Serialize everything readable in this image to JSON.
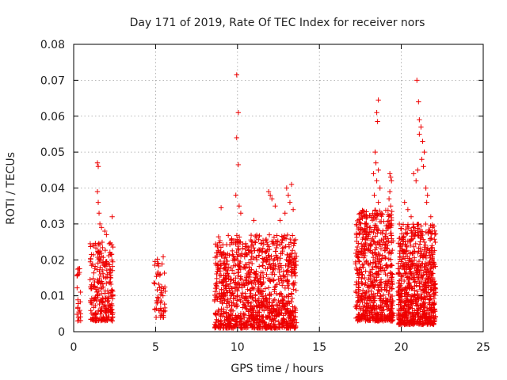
{
  "chart_data": {
    "type": "scatter",
    "title": "Day 171 of 2019, Rate Of TEC Index for receiver nors",
    "xlabel": "GPS time / hours",
    "ylabel": "ROTI / TECUs",
    "xlim": [
      0,
      25
    ],
    "ylim": [
      0,
      0.08
    ],
    "xticks": [
      "0",
      "5",
      "10",
      "15",
      "20",
      "25"
    ],
    "yticks": [
      "0",
      "0.01",
      "0.02",
      "0.03",
      "0.04",
      "0.05",
      "0.06",
      "0.07",
      "0.08"
    ],
    "grid": true,
    "marker": "+",
    "color": "#ee0000",
    "clusters": [
      {
        "x_range": [
          0.2,
          0.45
        ],
        "y_range": [
          0.003,
          0.018
        ],
        "count": 22
      },
      {
        "x_range": [
          1.0,
          2.4
        ],
        "y_range": [
          0.003,
          0.025
        ],
        "count": 260
      },
      {
        "x_range": [
          4.9,
          5.6
        ],
        "y_range": [
          0.004,
          0.021
        ],
        "count": 55
      },
      {
        "x_range": [
          8.6,
          13.6
        ],
        "y_range": [
          0.001,
          0.027
        ],
        "count": 1100
      },
      {
        "x_range": [
          17.2,
          19.5
        ],
        "y_range": [
          0.003,
          0.034
        ],
        "count": 650
      },
      {
        "x_range": [
          19.8,
          22.1
        ],
        "y_range": [
          0.002,
          0.03
        ],
        "count": 750
      }
    ],
    "points": [
      [
        0.3,
        0.0175
      ],
      [
        0.35,
        0.0165
      ],
      [
        1.45,
        0.047
      ],
      [
        1.5,
        0.046
      ],
      [
        1.45,
        0.039
      ],
      [
        1.5,
        0.036
      ],
      [
        1.55,
        0.033
      ],
      [
        1.6,
        0.03
      ],
      [
        1.7,
        0.029
      ],
      [
        2.35,
        0.032
      ],
      [
        1.9,
        0.028
      ],
      [
        2.0,
        0.027
      ],
      [
        9.95,
        0.0715
      ],
      [
        10.05,
        0.061
      ],
      [
        9.95,
        0.054
      ],
      [
        10.05,
        0.0465
      ],
      [
        9.9,
        0.038
      ],
      [
        10.1,
        0.035
      ],
      [
        9.0,
        0.0345
      ],
      [
        10.2,
        0.033
      ],
      [
        11.0,
        0.031
      ],
      [
        11.9,
        0.039
      ],
      [
        12.0,
        0.038
      ],
      [
        12.1,
        0.037
      ],
      [
        12.3,
        0.035
      ],
      [
        12.6,
        0.031
      ],
      [
        13.0,
        0.04
      ],
      [
        13.1,
        0.038
      ],
      [
        13.2,
        0.036
      ],
      [
        13.3,
        0.041
      ],
      [
        13.4,
        0.034
      ],
      [
        12.9,
        0.033
      ],
      [
        18.6,
        0.0645
      ],
      [
        18.5,
        0.061
      ],
      [
        18.55,
        0.0585
      ],
      [
        18.4,
        0.05
      ],
      [
        18.45,
        0.047
      ],
      [
        18.6,
        0.045
      ],
      [
        18.3,
        0.044
      ],
      [
        18.5,
        0.042
      ],
      [
        18.7,
        0.04
      ],
      [
        18.35,
        0.038
      ],
      [
        18.6,
        0.036
      ],
      [
        19.3,
        0.044
      ],
      [
        19.35,
        0.043
      ],
      [
        19.4,
        0.042
      ],
      [
        19.3,
        0.039
      ],
      [
        19.25,
        0.037
      ],
      [
        19.35,
        0.035
      ],
      [
        20.95,
        0.07
      ],
      [
        21.05,
        0.064
      ],
      [
        21.1,
        0.059
      ],
      [
        21.2,
        0.057
      ],
      [
        21.4,
        0.05
      ],
      [
        21.1,
        0.055
      ],
      [
        21.3,
        0.053
      ],
      [
        21.25,
        0.048
      ],
      [
        21.35,
        0.046
      ],
      [
        21.0,
        0.045
      ],
      [
        20.75,
        0.044
      ],
      [
        20.9,
        0.042
      ],
      [
        21.5,
        0.04
      ],
      [
        21.6,
        0.038
      ],
      [
        21.55,
        0.036
      ],
      [
        20.2,
        0.036
      ],
      [
        20.4,
        0.034
      ],
      [
        20.6,
        0.032
      ],
      [
        21.8,
        0.032
      ],
      [
        21.9,
        0.029
      ]
    ]
  }
}
